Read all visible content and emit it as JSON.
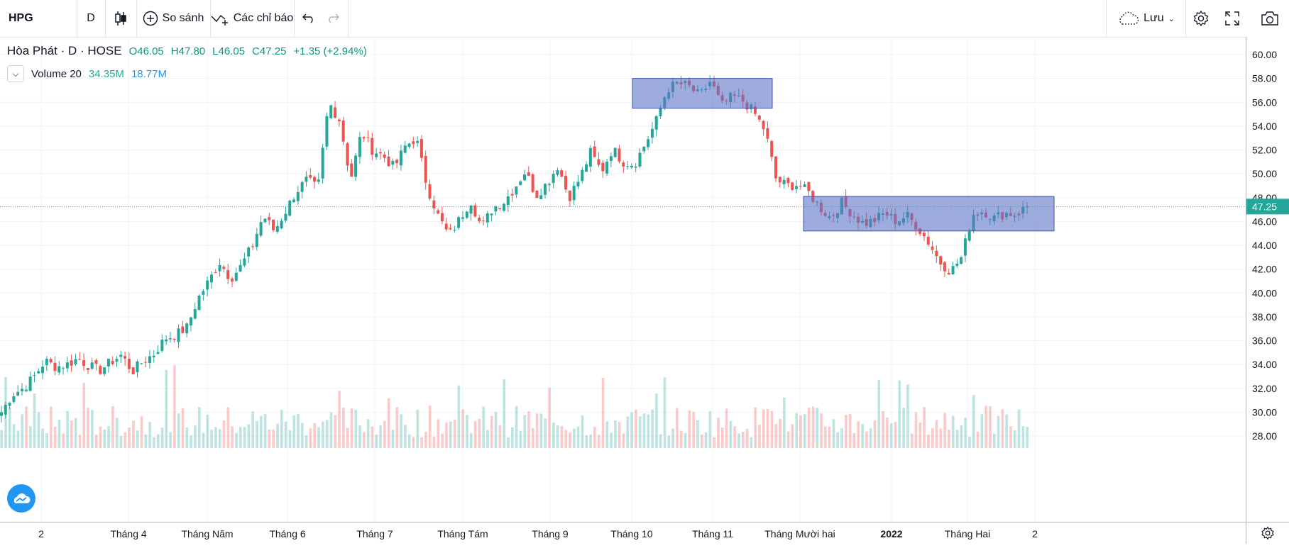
{
  "toolbar": {
    "symbol": "HPG",
    "interval": "D",
    "compare_label": "So sánh",
    "indicators_label": "Các chỉ báo",
    "save_label": "Lưu"
  },
  "legend": {
    "title": "Hòa Phát · D · HOSE",
    "open": "O46.05",
    "high": "H47.80",
    "low": "L46.05",
    "close": "C47.25",
    "change": "+1.35 (+2.94%)"
  },
  "volume_legend": {
    "label": "Volume 20",
    "value1": "34.35M",
    "value2": "18.77M"
  },
  "colors": {
    "up": "#26a69a",
    "down": "#ef5350",
    "box": "#5c73c6"
  },
  "chart_data": {
    "type": "candlestick",
    "ylim": [
      27,
      61
    ],
    "price_ticks": [
      "60.00",
      "58.00",
      "56.00",
      "54.00",
      "52.00",
      "50.00",
      "48.00",
      "46.00",
      "44.00",
      "42.00",
      "40.00",
      "38.00",
      "36.00",
      "34.00",
      "32.00",
      "30.00",
      "28.00"
    ],
    "current_price": "47.25",
    "time_labels": [
      "2",
      "Tháng 4",
      "Tháng Năm",
      "Tháng 6",
      "Tháng 7",
      "Tháng Tám",
      "Tháng 9",
      "Tháng 10",
      "Tháng 11",
      "Tháng Mười hai",
      "2022",
      "Tháng Hai",
      "2"
    ],
    "close_path": [
      30,
      31.5,
      32,
      33,
      34.3,
      33.8,
      34,
      34.5,
      33.9,
      33.5,
      34.2,
      34.8,
      33.4,
      34.3,
      34.9,
      36.2,
      36.5,
      37.1,
      39.5,
      41,
      42.6,
      41.2,
      42.3,
      44,
      46.5,
      45.2,
      46.8,
      48.5,
      49.5,
      48.7,
      56,
      54.5,
      49.5,
      53.5,
      52,
      51.5,
      50.5,
      52.3,
      53,
      49,
      46.5,
      44.8,
      46.2,
      47.8,
      45.5,
      47.1,
      47.6,
      48.8,
      50.2,
      48.2,
      49.2,
      50.7,
      48,
      49.6,
      51.8,
      50.2,
      52.1,
      51,
      50.8,
      52.5,
      54.4,
      57.1,
      57.6,
      57.3,
      56.5,
      57.8,
      55.7,
      56.5,
      56.1,
      55.1,
      53.6,
      49.5,
      49,
      49.1,
      48.4,
      47.2,
      46.3,
      47.6,
      46.6,
      45.8,
      46.1,
      46.7,
      46,
      46.5,
      45.5,
      44.2,
      42.6,
      41.8,
      43,
      46.6,
      46.9,
      46.3,
      46.7,
      46.6,
      47.25
    ],
    "boxes": [
      {
        "y_top": 58,
        "y_bottom": 55.5
      },
      {
        "y_top": 48.1,
        "y_bottom": 45.2
      }
    ]
  }
}
